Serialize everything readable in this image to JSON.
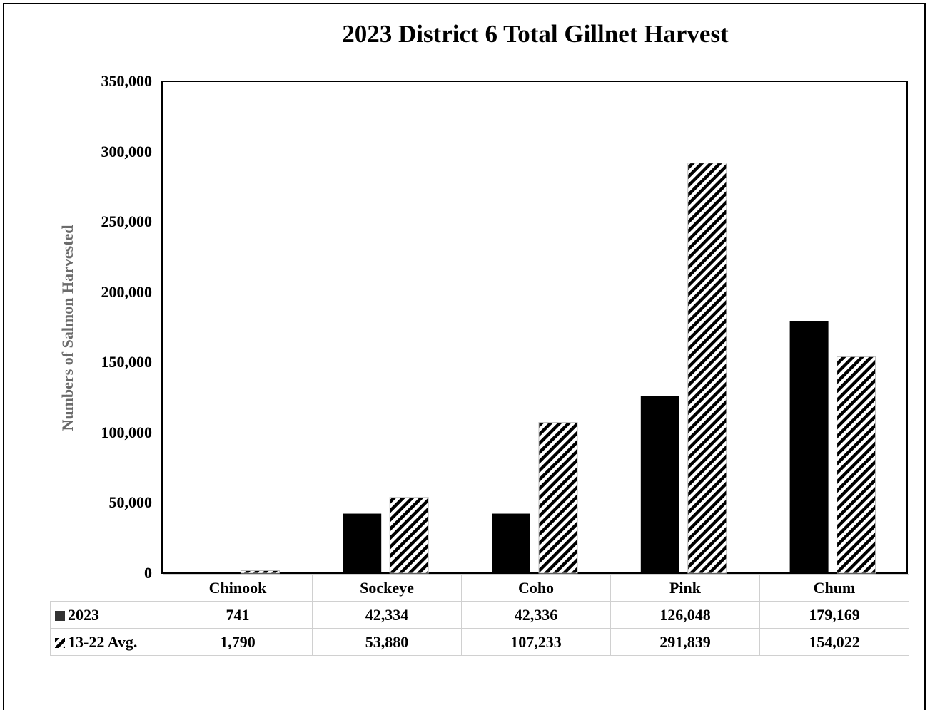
{
  "chart_data": {
    "type": "bar",
    "title": "2023 District 6 Total Gillnet Harvest",
    "ylabel": "Numbers of Salmon Harvested",
    "xlabel": "",
    "ylim": [
      0,
      350000
    ],
    "yticks": [
      "0",
      "50,000",
      "100,000",
      "150,000",
      "200,000",
      "250,000",
      "300,000",
      "350,000"
    ],
    "categories": [
      "Chinook",
      "Sockeye",
      "Coho",
      "Pink",
      "Chum"
    ],
    "series": [
      {
        "name": "2023",
        "values": [
          741,
          42334,
          42336,
          126048,
          179169
        ],
        "labels": [
          "741",
          "42,334",
          "42,336",
          "126,048",
          "179,169"
        ],
        "color": "#000000",
        "pattern": "solid"
      },
      {
        "name": "13-22 Avg.",
        "values": [
          1790,
          53880,
          107233,
          291839,
          154022
        ],
        "labels": [
          "1,790",
          "53,880",
          "107,233",
          "291,839",
          "154,022"
        ],
        "color": "#000000",
        "pattern": "diagonal-stripes"
      }
    ],
    "grid": false,
    "legend": "data-table"
  }
}
